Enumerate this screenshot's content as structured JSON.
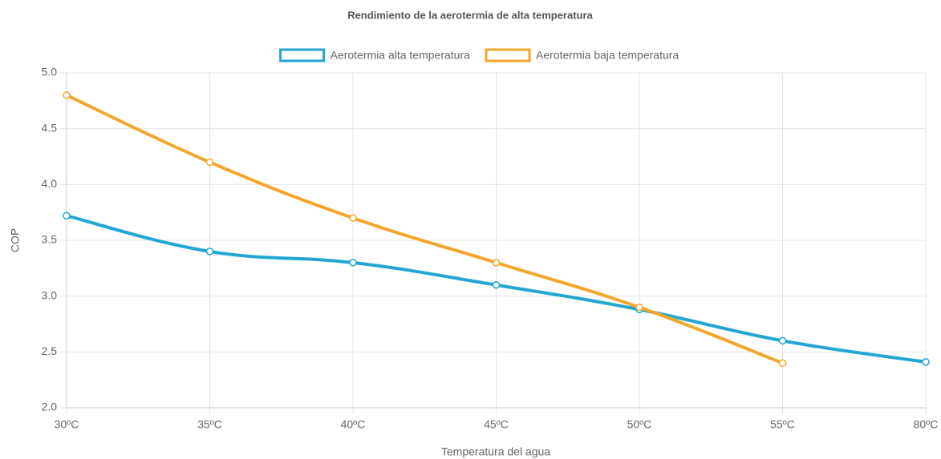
{
  "chart_data": {
    "type": "line",
    "title": "Rendimiento de la aerotermia de alta temperatura",
    "x_label": "Temperatura del agua",
    "y_label": "COP",
    "categories": [
      "30ºC",
      "35ºC",
      "40ºC",
      "45ºC",
      "50ºC",
      "55ºC",
      "80ºC"
    ],
    "series": [
      {
        "name": "Aerotermia alta temperatura",
        "color": "#22a6d3",
        "values": [
          3.72,
          3.4,
          3.3,
          3.1,
          2.88,
          2.6,
          2.41
        ]
      },
      {
        "name": "Aerotermia baja temperatura",
        "color": "#f4a62a",
        "values": [
          4.8,
          4.2,
          3.7,
          3.3,
          2.9,
          2.4,
          null
        ]
      }
    ],
    "ylim": [
      2,
      5
    ],
    "yticks": [
      {
        "value": 2,
        "label": "2.0"
      },
      2.5,
      {
        "value": 3,
        "label": "3.0"
      },
      3.5,
      {
        "value": 4,
        "label": "4.0"
      },
      4.5,
      {
        "value": 5,
        "label": "5.0"
      }
    ],
    "grid": true,
    "legend": "top"
  }
}
